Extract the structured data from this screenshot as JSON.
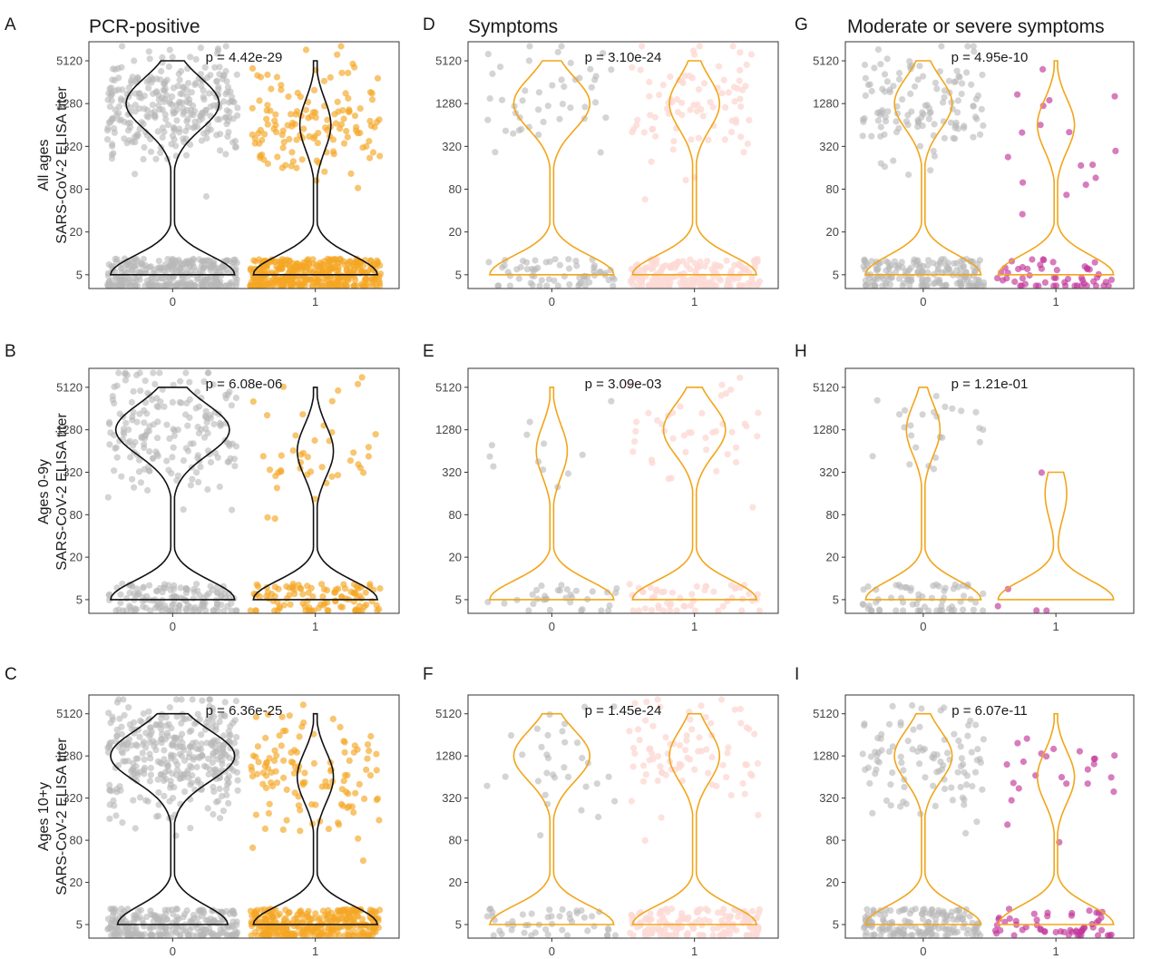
{
  "column_titles": [
    "PCR-positive",
    "Symptoms",
    "Moderate or severe symptoms"
  ],
  "row_labels": [
    [
      "All ages",
      "SARS-CoV-2 ELISA titer"
    ],
    [
      "Ages 0-9y",
      "SARS-CoV-2 ELISA titer"
    ],
    [
      "Ages 10+y",
      "SARS-CoV-2 ELISA titer"
    ]
  ],
  "colors": {
    "grey_points": "#b8b8b8",
    "orange_points": "#f5a623",
    "pink_points": "#fcd9d4",
    "magenta_points": "#c2369a",
    "violin_black": "#111111",
    "violin_orange": "#f2a51a",
    "frame": "#333333"
  },
  "chart_data": [
    {
      "panel": "A",
      "type": "violin",
      "column": 0,
      "row": 0,
      "p_label": "p = 4.42e-29",
      "y_ticks": [
        5,
        20,
        80,
        320,
        1280,
        5120
      ],
      "y_scale": "log",
      "x_categories": [
        "0",
        "1"
      ],
      "violin_color": "black",
      "point_colors": [
        "grey",
        "orange"
      ],
      "n_points": [
        620,
        520
      ],
      "series": [
        {
          "category": "0",
          "modes": [
            {
              "at": 5,
              "weight": 0.5
            },
            {
              "at": 1280,
              "weight": 0.5
            }
          ],
          "ymax": 5120
        },
        {
          "category": "1",
          "modes": [
            {
              "at": 5,
              "weight": 0.75
            },
            {
              "at": 640,
              "weight": 0.25
            }
          ],
          "ymax": 5120
        }
      ]
    },
    {
      "panel": "B",
      "type": "violin",
      "column": 0,
      "row": 1,
      "p_label": "p = 6.08e-06",
      "y_ticks": [
        5,
        20,
        80,
        320,
        1280,
        5120
      ],
      "y_scale": "log",
      "x_categories": [
        "0",
        "1"
      ],
      "violin_color": "black",
      "point_colors": [
        "grey",
        "orange"
      ],
      "n_points": [
        330,
        150
      ],
      "series": [
        {
          "category": "0",
          "modes": [
            {
              "at": 5,
              "weight": 0.45
            },
            {
              "at": 1280,
              "weight": 0.55
            }
          ],
          "ymax": 5120
        },
        {
          "category": "1",
          "modes": [
            {
              "at": 5,
              "weight": 0.72
            },
            {
              "at": 640,
              "weight": 0.28
            }
          ],
          "ymax": 5120
        }
      ]
    },
    {
      "panel": "C",
      "type": "violin",
      "column": 0,
      "row": 2,
      "p_label": "p = 6.36e-25",
      "y_ticks": [
        5,
        20,
        80,
        320,
        1280,
        5120
      ],
      "y_scale": "log",
      "x_categories": [
        "0",
        "1"
      ],
      "violin_color": "black",
      "point_colors": [
        "grey",
        "orange"
      ],
      "n_points": [
        600,
        430
      ],
      "series": [
        {
          "category": "0",
          "modes": [
            {
              "at": 5,
              "weight": 0.4
            },
            {
              "at": 1280,
              "weight": 0.6
            }
          ],
          "ymax": 5120
        },
        {
          "category": "1",
          "modes": [
            {
              "at": 5,
              "weight": 0.72
            },
            {
              "at": 640,
              "weight": 0.28
            }
          ],
          "ymax": 5120
        }
      ]
    },
    {
      "panel": "D",
      "type": "violin",
      "column": 1,
      "row": 0,
      "p_label": "p = 3.10e-24",
      "y_ticks": [
        5,
        20,
        80,
        320,
        1280,
        5120
      ],
      "y_scale": "log",
      "x_categories": [
        "0",
        "1"
      ],
      "violin_color": "orange",
      "point_colors": [
        "grey",
        "pink"
      ],
      "n_points": [
        110,
        270
      ],
      "series": [
        {
          "category": "0",
          "modes": [
            {
              "at": 5,
              "weight": 0.55
            },
            {
              "at": 1280,
              "weight": 0.45
            }
          ],
          "ymax": 5120
        },
        {
          "category": "1",
          "modes": [
            {
              "at": 5,
              "weight": 0.65
            },
            {
              "at": 1280,
              "weight": 0.35
            }
          ],
          "ymax": 5120
        }
      ]
    },
    {
      "panel": "E",
      "type": "violin",
      "column": 1,
      "row": 1,
      "p_label": "p = 3.09e-03",
      "y_ticks": [
        5,
        20,
        80,
        320,
        1280,
        5120
      ],
      "y_scale": "log",
      "x_categories": [
        "0",
        "1"
      ],
      "violin_color": "orange",
      "point_colors": [
        "grey",
        "pink"
      ],
      "n_points": [
        45,
        95
      ],
      "series": [
        {
          "category": "0",
          "modes": [
            {
              "at": 5,
              "weight": 0.75
            },
            {
              "at": 640,
              "weight": 0.25
            }
          ],
          "ymax": 5120
        },
        {
          "category": "1",
          "modes": [
            {
              "at": 5,
              "weight": 0.6
            },
            {
              "at": 1280,
              "weight": 0.4
            }
          ],
          "ymax": 5120
        }
      ]
    },
    {
      "panel": "F",
      "type": "violin",
      "column": 1,
      "row": 2,
      "p_label": "p = 1.45e-24",
      "y_ticks": [
        5,
        20,
        80,
        320,
        1280,
        5120
      ],
      "y_scale": "log",
      "x_categories": [
        "0",
        "1"
      ],
      "violin_color": "orange",
      "point_colors": [
        "grey",
        "pink"
      ],
      "n_points": [
        80,
        230
      ],
      "series": [
        {
          "category": "0",
          "modes": [
            {
              "at": 5,
              "weight": 0.55
            },
            {
              "at": 1280,
              "weight": 0.45
            }
          ],
          "ymax": 5120
        },
        {
          "category": "1",
          "modes": [
            {
              "at": 5,
              "weight": 0.65
            },
            {
              "at": 1280,
              "weight": 0.35
            }
          ],
          "ymax": 5120
        }
      ]
    },
    {
      "panel": "G",
      "type": "violin",
      "column": 2,
      "row": 0,
      "p_label": "p = 4.95e-10",
      "y_ticks": [
        5,
        20,
        80,
        320,
        1280,
        5120
      ],
      "y_scale": "log",
      "x_categories": [
        "0",
        "1"
      ],
      "violin_color": "orange",
      "point_colors": [
        "grey",
        "magenta"
      ],
      "n_points": [
        300,
        70
      ],
      "series": [
        {
          "category": "0",
          "modes": [
            {
              "at": 5,
              "weight": 0.6
            },
            {
              "at": 1280,
              "weight": 0.4
            }
          ],
          "ymax": 5120
        },
        {
          "category": "1",
          "modes": [
            {
              "at": 5,
              "weight": 0.7
            },
            {
              "at": 640,
              "weight": 0.3
            }
          ],
          "ymax": 5120
        }
      ]
    },
    {
      "panel": "H",
      "type": "violin",
      "column": 2,
      "row": 1,
      "p_label": "p = 1.21e-01",
      "y_ticks": [
        5,
        20,
        80,
        320,
        1280,
        5120
      ],
      "y_scale": "log",
      "x_categories": [
        "0",
        "1"
      ],
      "violin_color": "orange",
      "point_colors": [
        "grey",
        "magenta"
      ],
      "n_points": [
        90,
        5
      ],
      "series": [
        {
          "category": "0",
          "modes": [
            {
              "at": 5,
              "weight": 0.72
            },
            {
              "at": 1280,
              "weight": 0.28
            }
          ],
          "ymax": 5120
        },
        {
          "category": "1",
          "modes": [
            {
              "at": 5,
              "weight": 0.8
            },
            {
              "at": 160,
              "weight": 0.2
            }
          ],
          "ymax": 320
        }
      ]
    },
    {
      "panel": "I",
      "type": "violin",
      "column": 2,
      "row": 2,
      "p_label": "p = 6.07e-11",
      "y_ticks": [
        5,
        20,
        80,
        320,
        1280,
        5120
      ],
      "y_scale": "log",
      "x_categories": [
        "0",
        "1"
      ],
      "violin_color": "orange",
      "point_colors": [
        "grey",
        "magenta"
      ],
      "n_points": [
        260,
        80
      ],
      "series": [
        {
          "category": "0",
          "modes": [
            {
              "at": 5,
              "weight": 0.6
            },
            {
              "at": 1280,
              "weight": 0.4
            }
          ],
          "ymax": 5120
        },
        {
          "category": "1",
          "modes": [
            {
              "at": 5,
              "weight": 0.7
            },
            {
              "at": 640,
              "weight": 0.3
            }
          ],
          "ymax": 5120
        }
      ]
    }
  ]
}
